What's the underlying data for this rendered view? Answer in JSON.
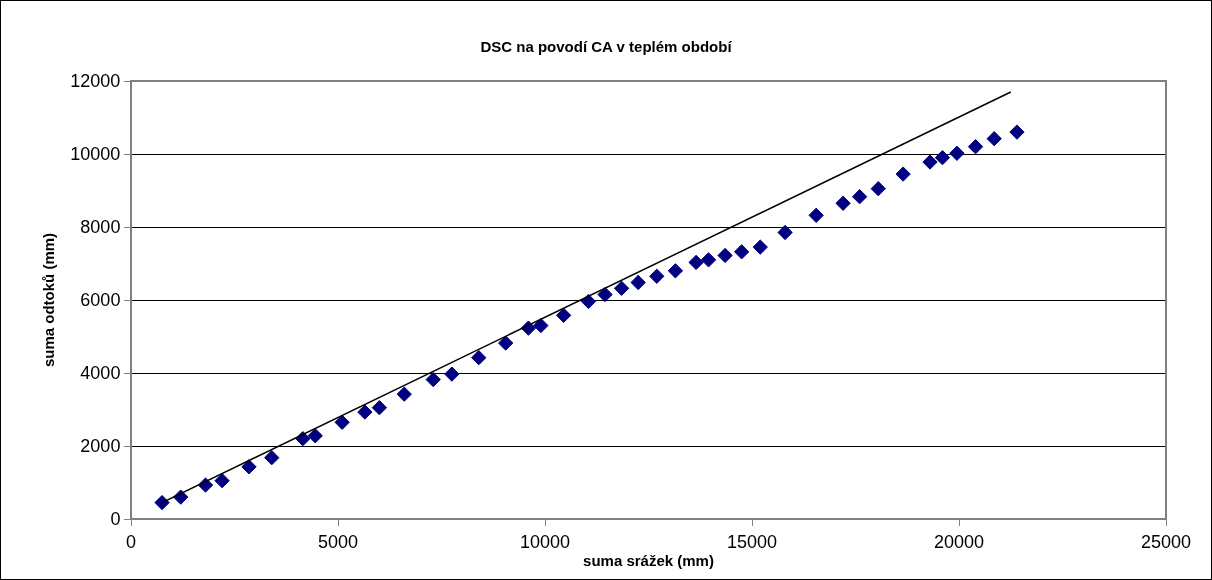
{
  "chart_data": {
    "type": "scatter",
    "title": "DSC na povodí CA v teplém období",
    "xlabel": "suma srážek (mm)",
    "ylabel": "suma odtoků (mm)",
    "xlim": [
      0,
      25000
    ],
    "xticks": [
      0,
      5000,
      10000,
      15000,
      20000,
      25000
    ],
    "ylim": [
      0,
      12000
    ],
    "yticks": [
      0,
      2000,
      4000,
      6000,
      8000,
      10000,
      12000
    ],
    "grid": "y",
    "series": [
      {
        "color": "#000080",
        "marker": "diamond",
        "x": [
          750,
          1200,
          1800,
          2200,
          2850,
          3400,
          4150,
          4450,
          5100,
          5650,
          6000,
          6600,
          7300,
          7750,
          8400,
          9050,
          9600,
          9900,
          10450,
          11050,
          11450,
          11850,
          12250,
          12700,
          13150,
          13650,
          13950,
          14350,
          14750,
          15200,
          15800,
          16550,
          17200,
          17600,
          18050,
          18650,
          19300,
          19600,
          19950,
          20400,
          20850,
          21400
        ],
        "values": [
          450,
          600,
          930,
          1050,
          1430,
          1680,
          2200,
          2280,
          2650,
          2930,
          3050,
          3420,
          3820,
          3970,
          4420,
          4820,
          5230,
          5300,
          5580,
          5960,
          6150,
          6320,
          6480,
          6650,
          6800,
          7030,
          7100,
          7220,
          7320,
          7450,
          7850,
          8320,
          8650,
          8830,
          9050,
          9450,
          9780,
          9900,
          10020,
          10200,
          10420,
          10600
        ]
      },
      {
        "type": "line",
        "color": "#000000",
        "marker": "none",
        "x": [
          750,
          21250
        ],
        "values": [
          450,
          11700
        ]
      }
    ]
  }
}
